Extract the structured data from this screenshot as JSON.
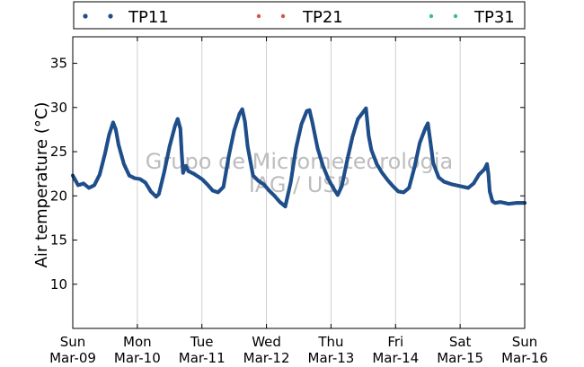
{
  "chart_data": {
    "type": "scatter",
    "ylabel": "Air temperature (°C)",
    "ylim": [
      5,
      38
    ],
    "yticks": [
      10,
      15,
      20,
      25,
      30,
      35
    ],
    "xlim": [
      "2014-03-09T00:00",
      "2014-03-16T00:00"
    ],
    "xticks": [
      {
        "day": "Sun",
        "date": "Mar-09"
      },
      {
        "day": "Mon",
        "date": "Mar-10"
      },
      {
        "day": "Tue",
        "date": "Mar-11"
      },
      {
        "day": "Wed",
        "date": "Mar-12"
      },
      {
        "day": "Thu",
        "date": "Mar-13"
      },
      {
        "day": "Fri",
        "date": "Mar-14"
      },
      {
        "day": "Sat",
        "date": "Mar-15"
      },
      {
        "day": "Sun",
        "date": "Mar-16"
      }
    ],
    "grid": "vertical",
    "legend_position": "top, above plot",
    "watermark": [
      "Grupo de Micrometeorologia",
      "IAG / USP"
    ],
    "series": [
      {
        "name": "TP11",
        "color": "#1f4e8a",
        "points": [
          [
            "2014-03-09T00:00",
            22.3
          ],
          [
            "2014-03-09T02:00",
            21.2
          ],
          [
            "2014-03-09T04:00",
            21.4
          ],
          [
            "2014-03-09T06:00",
            20.9
          ],
          [
            "2014-03-09T08:00",
            21.2
          ],
          [
            "2014-03-09T10:00",
            22.4
          ],
          [
            "2014-03-09T12:00",
            24.8
          ],
          [
            "2014-03-09T13:30",
            26.9
          ],
          [
            "2014-03-09T15:00",
            28.3
          ],
          [
            "2014-03-09T16:00",
            27.5
          ],
          [
            "2014-03-09T17:00",
            25.8
          ],
          [
            "2014-03-09T19:00",
            23.6
          ],
          [
            "2014-03-09T21:00",
            22.3
          ],
          [
            "2014-03-09T23:00",
            22.0
          ],
          [
            "2014-03-10T01:00",
            21.9
          ],
          [
            "2014-03-10T03:00",
            21.5
          ],
          [
            "2014-03-10T05:00",
            20.5
          ],
          [
            "2014-03-10T07:00",
            19.9
          ],
          [
            "2014-03-10T08:00",
            20.2
          ],
          [
            "2014-03-10T10:00",
            22.7
          ],
          [
            "2014-03-10T12:00",
            25.6
          ],
          [
            "2014-03-10T14:00",
            27.9
          ],
          [
            "2014-03-10T15:00",
            28.7
          ],
          [
            "2014-03-10T16:00",
            27.6
          ],
          [
            "2014-03-10T16:30",
            24.8
          ],
          [
            "2014-03-10T17:00",
            22.6
          ],
          [
            "2014-03-10T18:00",
            23.4
          ],
          [
            "2014-03-10T19:00",
            22.8
          ],
          [
            "2014-03-10T21:00",
            22.5
          ],
          [
            "2014-03-11T00:00",
            21.9
          ],
          [
            "2014-03-11T02:00",
            21.3
          ],
          [
            "2014-03-11T04:00",
            20.6
          ],
          [
            "2014-03-11T06:00",
            20.4
          ],
          [
            "2014-03-11T08:00",
            21.0
          ],
          [
            "2014-03-11T10:00",
            24.5
          ],
          [
            "2014-03-11T12:00",
            27.4
          ],
          [
            "2014-03-11T14:00",
            29.3
          ],
          [
            "2014-03-11T15:00",
            29.8
          ],
          [
            "2014-03-11T16:00",
            28.4
          ],
          [
            "2014-03-11T17:00",
            25.6
          ],
          [
            "2014-03-11T19:00",
            22.3
          ],
          [
            "2014-03-11T21:00",
            21.7
          ],
          [
            "2014-03-11T23:00",
            21.3
          ],
          [
            "2014-03-12T01:00",
            20.6
          ],
          [
            "2014-03-12T03:00",
            20.0
          ],
          [
            "2014-03-12T05:00",
            19.3
          ],
          [
            "2014-03-12T07:00",
            18.8
          ],
          [
            "2014-03-12T09:00",
            21.5
          ],
          [
            "2014-03-12T11:00",
            25.4
          ],
          [
            "2014-03-12T13:00",
            28.1
          ],
          [
            "2014-03-12T15:00",
            29.6
          ],
          [
            "2014-03-12T16:00",
            29.7
          ],
          [
            "2014-03-12T17:00",
            28.4
          ],
          [
            "2014-03-12T19:00",
            25.4
          ],
          [
            "2014-03-12T21:00",
            23.4
          ],
          [
            "2014-03-12T23:00",
            21.9
          ],
          [
            "2014-03-13T01:00",
            20.8
          ],
          [
            "2014-03-13T02:30",
            20.1
          ],
          [
            "2014-03-13T04:00",
            21.1
          ],
          [
            "2014-03-13T06:00",
            24.0
          ],
          [
            "2014-03-13T08:00",
            26.7
          ],
          [
            "2014-03-13T10:00",
            28.7
          ],
          [
            "2014-03-13T12:00",
            29.5
          ],
          [
            "2014-03-13T13:00",
            29.9
          ],
          [
            "2014-03-13T14:00",
            26.8
          ],
          [
            "2014-03-13T15:00",
            25.2
          ],
          [
            "2014-03-13T17:00",
            23.6
          ],
          [
            "2014-03-13T19:00",
            22.6
          ],
          [
            "2014-03-13T21:00",
            21.8
          ],
          [
            "2014-03-13T23:00",
            21.1
          ],
          [
            "2014-03-14T01:00",
            20.5
          ],
          [
            "2014-03-14T03:00",
            20.4
          ],
          [
            "2014-03-14T05:00",
            20.9
          ],
          [
            "2014-03-14T07:00",
            23.2
          ],
          [
            "2014-03-14T09:00",
            26.0
          ],
          [
            "2014-03-14T11:00",
            27.6
          ],
          [
            "2014-03-14T12:00",
            28.2
          ],
          [
            "2014-03-14T13:00",
            26.0
          ],
          [
            "2014-03-14T14:00",
            23.7
          ],
          [
            "2014-03-14T16:00",
            22.1
          ],
          [
            "2014-03-14T18:00",
            21.6
          ],
          [
            "2014-03-14T21:00",
            21.3
          ],
          [
            "2014-03-15T00:00",
            21.1
          ],
          [
            "2014-03-15T03:00",
            20.9
          ],
          [
            "2014-03-15T05:00",
            21.4
          ],
          [
            "2014-03-15T07:00",
            22.4
          ],
          [
            "2014-03-15T09:00",
            23.0
          ],
          [
            "2014-03-15T10:00",
            23.6
          ],
          [
            "2014-03-15T10:30",
            22.5
          ],
          [
            "2014-03-15T11:00",
            20.5
          ],
          [
            "2014-03-15T12:00",
            19.4
          ],
          [
            "2014-03-15T13:00",
            19.2
          ],
          [
            "2014-03-15T15:00",
            19.3
          ],
          [
            "2014-03-15T18:00",
            19.1
          ],
          [
            "2014-03-15T21:00",
            19.2
          ],
          [
            "2014-03-16T00:00",
            19.2
          ]
        ]
      },
      {
        "name": "TP21",
        "color": "#d0584a",
        "points": []
      },
      {
        "name": "TP31",
        "color": "#3bbf7a",
        "points": []
      }
    ]
  }
}
